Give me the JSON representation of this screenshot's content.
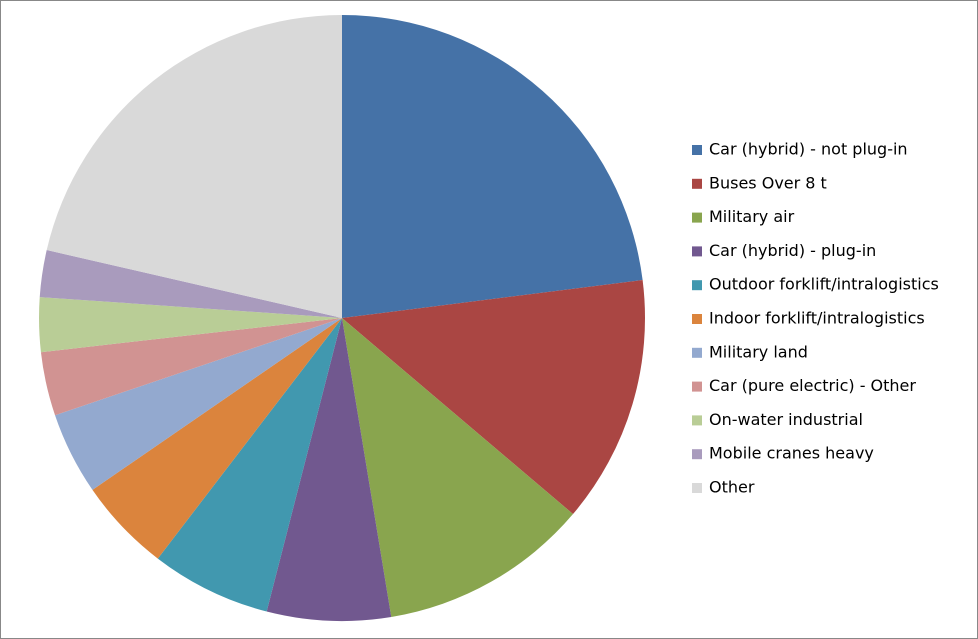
{
  "chart_data": {
    "type": "pie",
    "categories": [
      "Car (hybrid) - not plug-in",
      "Buses Over 8 t",
      "Military air",
      "Car (hybrid) - plug-in",
      "Outdoor forklift/intralogistics",
      "Indoor forklift/intralogistics",
      "Military land",
      "Car (pure electric) - Other",
      "On-water industrial",
      "Mobile cranes heavy",
      "Other"
    ],
    "values": [
      23,
      13.2,
      11.2,
      6.6,
      6.4,
      5,
      4.4,
      3.4,
      2.9,
      2.5,
      21.4
    ],
    "colors": [
      "#4572a7",
      "#aa4643",
      "#89a54e",
      "#71588f",
      "#4198af",
      "#db843d",
      "#93a9cf",
      "#d19392",
      "#b9cd96",
      "#a99bbd",
      "#d9d9d9"
    ],
    "legend": "right"
  }
}
